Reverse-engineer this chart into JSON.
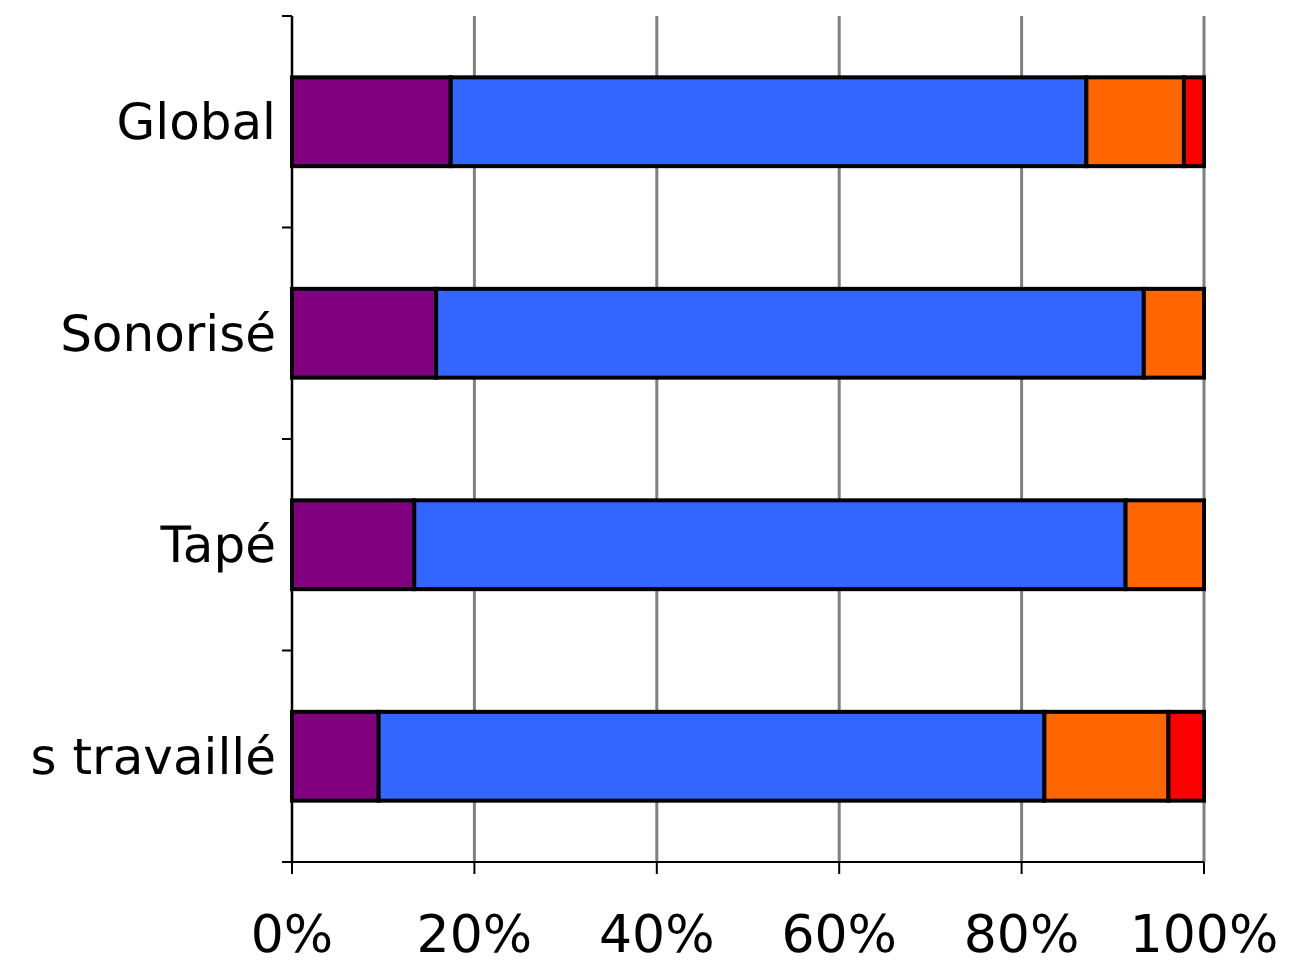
{
  "chart_data": {
    "type": "bar",
    "orientation": "horizontal",
    "stacked": true,
    "categories": [
      "Global",
      "Sonorisé",
      "Tapé",
      "s travaillé"
    ],
    "series": [
      {
        "color": "#800080",
        "values": [
          17.4,
          15.8,
          13.4,
          9.5
        ]
      },
      {
        "color": "#3366ff",
        "values": [
          69.7,
          77.6,
          78.0,
          73.0
        ]
      },
      {
        "color": "#ff6600",
        "values": [
          10.7,
          6.6,
          8.6,
          13.6
        ]
      },
      {
        "color": "#ff0000",
        "values": [
          2.2,
          0,
          0,
          3.9
        ]
      }
    ],
    "xlim": [
      0,
      100
    ],
    "xticks": [
      {
        "value": 0,
        "label": "0%"
      },
      {
        "value": 20,
        "label": "20%"
      },
      {
        "value": 40,
        "label": "40%"
      },
      {
        "value": 60,
        "label": "60%"
      },
      {
        "value": 80,
        "label": "80%"
      },
      {
        "value": 100,
        "label": "100%"
      }
    ],
    "grid": "x"
  }
}
